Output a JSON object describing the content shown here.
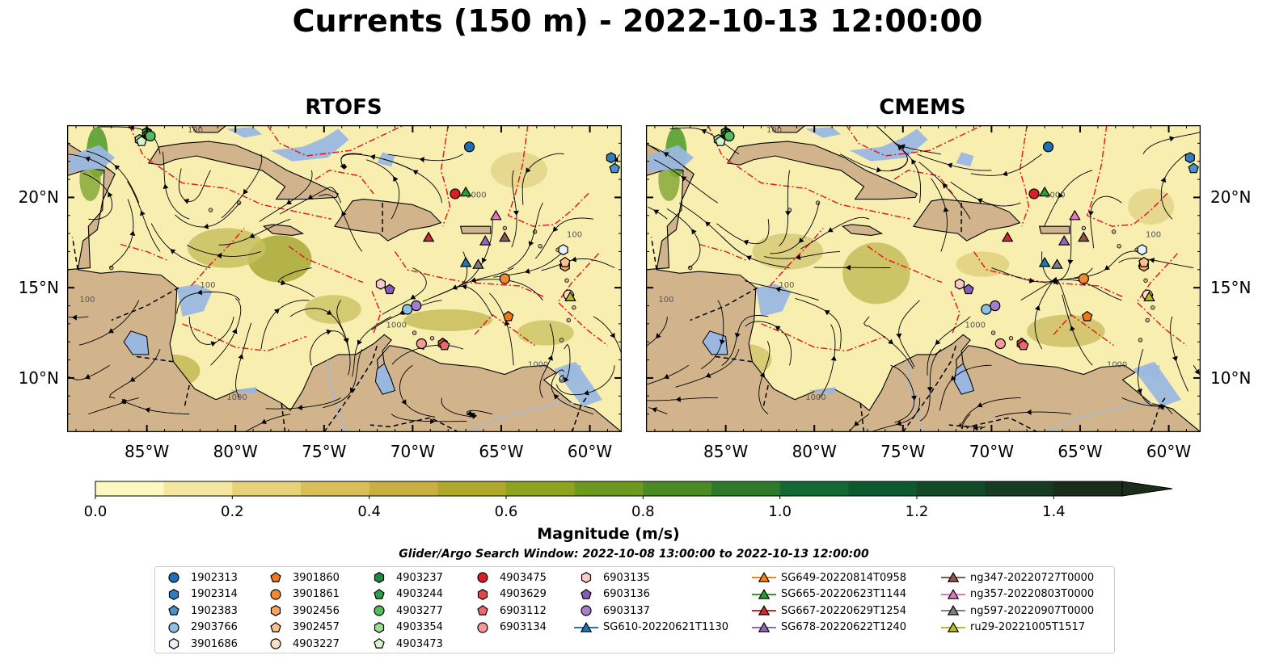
{
  "title": "Currents (150 m) - 2022-10-13 12:00:00",
  "chart_data": [
    {
      "type": "heatmap",
      "title": "RTOFS",
      "xlim": [
        -89.5,
        -58.2
      ],
      "ylim": [
        7,
        24
      ],
      "x_ticks": [
        "85°W",
        "80°W",
        "75°W",
        "70°W",
        "65°W",
        "60°W"
      ],
      "x_tick_values": [
        -85,
        -80,
        -75,
        -70,
        -65,
        -60
      ],
      "y_ticks": [
        "20°N",
        "15°N",
        "10°N"
      ],
      "y_tick_values": [
        20,
        15,
        10
      ],
      "contour_labels": [
        "100",
        "1000"
      ],
      "field": "current magnitude with streamlines"
    },
    {
      "type": "heatmap",
      "title": "CMEMS",
      "xlim": [
        -89.5,
        -58.2
      ],
      "ylim": [
        7,
        24
      ],
      "x_ticks": [
        "85°W",
        "80°W",
        "75°W",
        "70°W",
        "65°W",
        "60°W"
      ],
      "x_tick_values": [
        -85,
        -80,
        -75,
        -70,
        -65,
        -60
      ],
      "y_ticks": [
        "20°N",
        "15°N",
        "10°N"
      ],
      "y_tick_values": [
        20,
        15,
        10
      ],
      "contour_labels": [
        "100",
        "1000"
      ],
      "field": "current magnitude with streamlines"
    }
  ],
  "colorbar": {
    "label": "Magnitude (m/s)",
    "ticks": [
      "0.0",
      "0.2",
      "0.4",
      "0.6",
      "0.8",
      "1.0",
      "1.2",
      "1.4"
    ],
    "tick_values": [
      0,
      0.2,
      0.4,
      0.6,
      0.8,
      1.0,
      1.2,
      1.4
    ],
    "range": [
      0,
      1.5
    ],
    "extend": "max",
    "colors": [
      "#fdf7c0",
      "#f5e7a0",
      "#e7d27a",
      "#d9bf5a",
      "#c8b040",
      "#b0a82e",
      "#8ea41e",
      "#6c9a1e",
      "#4c8a24",
      "#2e7a2a",
      "#126a32",
      "#0c5a2e",
      "#124a28",
      "#163a22",
      "#1a2c1c"
    ]
  },
  "legend": {
    "title": "Glider/Argo Search Window: 2022-10-08 13:00:00 to 2022-10-13 12:00:00",
    "items": [
      {
        "label": "1902313",
        "marker": "circle",
        "color": "#1f6fb4"
      },
      {
        "label": "1902314",
        "marker": "hexagon",
        "color": "#2f7ec0"
      },
      {
        "label": "1902383",
        "marker": "pentagon",
        "color": "#4a90cc"
      },
      {
        "label": "2903766",
        "marker": "circle",
        "color": "#8cc0e6"
      },
      {
        "label": "3901686",
        "marker": "hexagon",
        "color": "#e8f2fb"
      },
      {
        "label": "3901860",
        "marker": "pentagon",
        "color": "#f07818"
      },
      {
        "label": "3901861",
        "marker": "circle",
        "color": "#f28a30"
      },
      {
        "label": "3902456",
        "marker": "hexagon",
        "color": "#f6a460"
      },
      {
        "label": "3902457",
        "marker": "pentagon",
        "color": "#f9c08c"
      },
      {
        "label": "4903227",
        "marker": "circle",
        "color": "#fde0c4"
      },
      {
        "label": "4903237",
        "marker": "hexagon",
        "color": "#1e8a3a"
      },
      {
        "label": "4903244",
        "marker": "pentagon",
        "color": "#2fa04a"
      },
      {
        "label": "4903277",
        "marker": "circle",
        "color": "#52bc5c"
      },
      {
        "label": "4903354",
        "marker": "hexagon",
        "color": "#98dc90"
      },
      {
        "label": "4903473",
        "marker": "pentagon",
        "color": "#d6f4c8"
      },
      {
        "label": "4903475",
        "marker": "circle",
        "color": "#d62022"
      },
      {
        "label": "4903629",
        "marker": "hexagon",
        "color": "#e04848"
      },
      {
        "label": "6903112",
        "marker": "pentagon",
        "color": "#ea6a6a"
      },
      {
        "label": "6903134",
        "marker": "circle",
        "color": "#f49a9a"
      },
      {
        "label": "6903135",
        "marker": "hexagon",
        "color": "#fbcaca"
      },
      {
        "label": "6903136",
        "marker": "pentagon",
        "color": "#8a5cb8"
      },
      {
        "label": "6903137",
        "marker": "circle",
        "color": "#a47fcc"
      },
      {
        "label": "SG610-20220621T1130",
        "marker": "triangle-line",
        "color": "#1f77b4"
      },
      {
        "label": "SG649-20220814T0958",
        "marker": "triangle-line",
        "color": "#ff7f0e"
      },
      {
        "label": "SG665-20220623T1144",
        "marker": "triangle-line",
        "color": "#2ca02c"
      },
      {
        "label": "SG667-20220629T1254",
        "marker": "triangle-line",
        "color": "#d62728"
      },
      {
        "label": "SG678-20220622T1240",
        "marker": "triangle-line",
        "color": "#9467bd"
      },
      {
        "label": "ng347-20220727T0000",
        "marker": "triangle-line",
        "color": "#8c564b"
      },
      {
        "label": "ng357-20220803T0000",
        "marker": "triangle-line",
        "color": "#e377c2"
      },
      {
        "label": "ng597-20220907T0000",
        "marker": "triangle-line",
        "color": "#7f7f7f"
      },
      {
        "label": "ru29-20221005T1517",
        "marker": "triangle-line",
        "color": "#bcbd22"
      }
    ]
  },
  "observations": [
    {
      "label": "1902313",
      "lon": -66.8,
      "lat": 22.8
    },
    {
      "label": "1902314",
      "lon": -58.8,
      "lat": 22.2
    },
    {
      "label": "1902383",
      "lon": -58.6,
      "lat": 21.6
    },
    {
      "label": "2903766",
      "lon": -70.3,
      "lat": 13.8
    },
    {
      "label": "3901686",
      "lon": -61.5,
      "lat": 17.1
    },
    {
      "label": "3901860",
      "lon": -64.6,
      "lat": 13.4
    },
    {
      "label": "3901861",
      "lon": -64.8,
      "lat": 15.5
    },
    {
      "label": "3902456",
      "lon": -61.4,
      "lat": 16.2
    },
    {
      "label": "3902457",
      "lon": -61.4,
      "lat": 16.4
    },
    {
      "label": "4903227",
      "lon": -61.2,
      "lat": 14.6
    },
    {
      "label": "4903237",
      "lon": -85.0,
      "lat": 23.6
    },
    {
      "label": "4903244",
      "lon": -84.9,
      "lat": 23.5
    },
    {
      "label": "4903277",
      "lon": -84.8,
      "lat": 23.4
    },
    {
      "label": "4903354",
      "lon": -85.4,
      "lat": 23.2
    },
    {
      "label": "4903473",
      "lon": -85.3,
      "lat": 23.1
    },
    {
      "label": "4903475",
      "lon": -67.6,
      "lat": 20.2
    },
    {
      "label": "4903629",
      "lon": -68.3,
      "lat": 11.9
    },
    {
      "label": "6903112",
      "lon": -68.2,
      "lat": 11.8
    },
    {
      "label": "6903134",
      "lon": -69.5,
      "lat": 11.9
    },
    {
      "label": "6903135",
      "lon": -71.8,
      "lat": 15.2
    },
    {
      "label": "6903136",
      "lon": -71.3,
      "lat": 14.9
    },
    {
      "label": "6903137",
      "lon": -69.8,
      "lat": 14.0
    },
    {
      "label": "SG610-20220621T1130",
      "lon": -67.0,
      "lat": 16.4
    },
    {
      "label": "SG665-20220623T1144",
      "lon": -67.0,
      "lat": 20.3
    },
    {
      "label": "SG667-20220629T1254",
      "lon": -69.1,
      "lat": 17.8
    },
    {
      "label": "SG678-20220622T1240",
      "lon": -65.9,
      "lat": 17.6
    },
    {
      "label": "ng347-20220727T0000",
      "lon": -64.8,
      "lat": 17.8
    },
    {
      "label": "ng357-20220803T0000",
      "lon": -65.3,
      "lat": 19.0
    },
    {
      "label": "ng597-20220907T0000",
      "lon": -66.3,
      "lat": 16.3
    },
    {
      "label": "ru29-20221005T1517",
      "lon": -61.1,
      "lat": 14.5
    }
  ]
}
